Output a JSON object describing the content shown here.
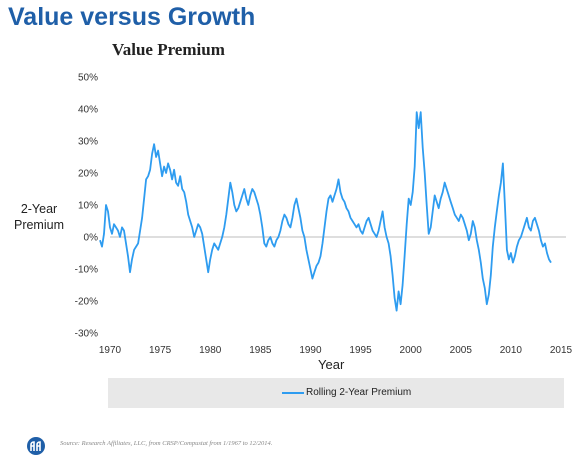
{
  "slide_title": "Value versus Growth",
  "source_note": "Source: Research Affiliates, LLC, from CRSP/Compustat from 1/1967 to 12/2014.",
  "logo_icon": "research-affiliates-logo",
  "chart_data": {
    "type": "line",
    "title": "Value Premium",
    "xlabel": "Year",
    "ylabel": "2-Year Premium",
    "ylabel_lines": [
      "2-Year",
      "Premium"
    ],
    "xlim": [
      1970,
      2015.5
    ],
    "ylim": [
      -30,
      50
    ],
    "x_ticks": [
      1970,
      1975,
      1980,
      1985,
      1990,
      1995,
      2000,
      2005,
      2010,
      2015
    ],
    "y_ticks": [
      -30,
      -20,
      -10,
      0,
      10,
      20,
      30,
      40,
      50
    ],
    "y_tick_labels": [
      "-30%",
      "-20%",
      "-10%",
      "0%",
      "10%",
      "20%",
      "30%",
      "40%",
      "50%"
    ],
    "zero_line": true,
    "grid": false,
    "legend_position": "bottom",
    "line_color": "#2e9cf0",
    "series": [
      {
        "name": "Rolling 2-Year Premium",
        "points": [
          [
            1969.0,
            -1
          ],
          [
            1969.2,
            -3
          ],
          [
            1969.4,
            1
          ],
          [
            1969.6,
            10
          ],
          [
            1969.8,
            8
          ],
          [
            1970.0,
            3
          ],
          [
            1970.2,
            1
          ],
          [
            1970.4,
            4
          ],
          [
            1970.6,
            3
          ],
          [
            1970.8,
            2
          ],
          [
            1971.0,
            0
          ],
          [
            1971.2,
            3
          ],
          [
            1971.4,
            2
          ],
          [
            1971.6,
            -2
          ],
          [
            1971.8,
            -6
          ],
          [
            1972.0,
            -11
          ],
          [
            1972.2,
            -7
          ],
          [
            1972.4,
            -4
          ],
          [
            1972.6,
            -3
          ],
          [
            1972.8,
            -2
          ],
          [
            1973.0,
            2
          ],
          [
            1973.2,
            6
          ],
          [
            1973.4,
            12
          ],
          [
            1973.6,
            18
          ],
          [
            1973.8,
            19
          ],
          [
            1974.0,
            21
          ],
          [
            1974.2,
            26
          ],
          [
            1974.4,
            29
          ],
          [
            1974.6,
            25
          ],
          [
            1974.8,
            27
          ],
          [
            1975.0,
            23
          ],
          [
            1975.2,
            19
          ],
          [
            1975.4,
            22
          ],
          [
            1975.6,
            20
          ],
          [
            1975.8,
            23
          ],
          [
            1976.0,
            21
          ],
          [
            1976.2,
            18
          ],
          [
            1976.4,
            21
          ],
          [
            1976.6,
            17
          ],
          [
            1976.8,
            16
          ],
          [
            1977.0,
            19
          ],
          [
            1977.2,
            15
          ],
          [
            1977.4,
            14
          ],
          [
            1977.6,
            11
          ],
          [
            1977.8,
            7
          ],
          [
            1978.0,
            5
          ],
          [
            1978.2,
            3
          ],
          [
            1978.4,
            0
          ],
          [
            1978.6,
            2
          ],
          [
            1978.8,
            4
          ],
          [
            1979.0,
            3
          ],
          [
            1979.2,
            1
          ],
          [
            1979.4,
            -3
          ],
          [
            1979.6,
            -7
          ],
          [
            1979.8,
            -11
          ],
          [
            1980.0,
            -7
          ],
          [
            1980.2,
            -4
          ],
          [
            1980.4,
            -2
          ],
          [
            1980.6,
            -3
          ],
          [
            1980.8,
            -4
          ],
          [
            1981.0,
            -2
          ],
          [
            1981.2,
            0
          ],
          [
            1981.4,
            3
          ],
          [
            1981.6,
            7
          ],
          [
            1981.8,
            12
          ],
          [
            1982.0,
            17
          ],
          [
            1982.2,
            14
          ],
          [
            1982.4,
            10
          ],
          [
            1982.6,
            8
          ],
          [
            1982.8,
            9
          ],
          [
            1983.0,
            11
          ],
          [
            1983.2,
            13
          ],
          [
            1983.4,
            15
          ],
          [
            1983.6,
            12
          ],
          [
            1983.8,
            10
          ],
          [
            1984.0,
            13
          ],
          [
            1984.2,
            15
          ],
          [
            1984.4,
            14
          ],
          [
            1984.6,
            12
          ],
          [
            1984.8,
            10
          ],
          [
            1985.0,
            7
          ],
          [
            1985.2,
            3
          ],
          [
            1985.4,
            -2
          ],
          [
            1985.6,
            -3
          ],
          [
            1985.8,
            -1
          ],
          [
            1986.0,
            0
          ],
          [
            1986.2,
            -2
          ],
          [
            1986.4,
            -3
          ],
          [
            1986.6,
            -1
          ],
          [
            1986.8,
            0
          ],
          [
            1987.0,
            2
          ],
          [
            1987.2,
            5
          ],
          [
            1987.4,
            7
          ],
          [
            1987.6,
            6
          ],
          [
            1987.8,
            4
          ],
          [
            1988.0,
            3
          ],
          [
            1988.2,
            6
          ],
          [
            1988.4,
            10
          ],
          [
            1988.6,
            12
          ],
          [
            1988.8,
            9
          ],
          [
            1989.0,
            6
          ],
          [
            1989.2,
            2
          ],
          [
            1989.4,
            0
          ],
          [
            1989.6,
            -4
          ],
          [
            1989.8,
            -7
          ],
          [
            1990.0,
            -10
          ],
          [
            1990.2,
            -13
          ],
          [
            1990.4,
            -11
          ],
          [
            1990.6,
            -9
          ],
          [
            1990.8,
            -8
          ],
          [
            1991.0,
            -6
          ],
          [
            1991.2,
            -2
          ],
          [
            1991.4,
            3
          ],
          [
            1991.6,
            8
          ],
          [
            1991.8,
            12
          ],
          [
            1992.0,
            13
          ],
          [
            1992.2,
            11
          ],
          [
            1992.4,
            13
          ],
          [
            1992.6,
            15
          ],
          [
            1992.8,
            18
          ],
          [
            1993.0,
            14
          ],
          [
            1993.2,
            12
          ],
          [
            1993.4,
            11
          ],
          [
            1993.6,
            9
          ],
          [
            1993.8,
            8
          ],
          [
            1994.0,
            6
          ],
          [
            1994.2,
            5
          ],
          [
            1994.4,
            4
          ],
          [
            1994.6,
            3
          ],
          [
            1994.8,
            4
          ],
          [
            1995.0,
            2
          ],
          [
            1995.2,
            1
          ],
          [
            1995.4,
            3
          ],
          [
            1995.6,
            5
          ],
          [
            1995.8,
            6
          ],
          [
            1996.0,
            4
          ],
          [
            1996.2,
            2
          ],
          [
            1996.4,
            1
          ],
          [
            1996.6,
            0
          ],
          [
            1996.8,
            2
          ],
          [
            1997.0,
            5
          ],
          [
            1997.2,
            8
          ],
          [
            1997.4,
            3
          ],
          [
            1997.6,
            0
          ],
          [
            1997.8,
            -2
          ],
          [
            1998.0,
            -6
          ],
          [
            1998.2,
            -12
          ],
          [
            1998.4,
            -19
          ],
          [
            1998.6,
            -23
          ],
          [
            1998.8,
            -17
          ],
          [
            1999.0,
            -21
          ],
          [
            1999.2,
            -15
          ],
          [
            1999.4,
            -6
          ],
          [
            1999.6,
            4
          ],
          [
            1999.8,
            12
          ],
          [
            2000.0,
            10
          ],
          [
            2000.2,
            14
          ],
          [
            2000.4,
            22
          ],
          [
            2000.6,
            39
          ],
          [
            2000.8,
            34
          ],
          [
            2001.0,
            39
          ],
          [
            2001.2,
            28
          ],
          [
            2001.4,
            20
          ],
          [
            2001.6,
            10
          ],
          [
            2001.8,
            1
          ],
          [
            2002.0,
            3
          ],
          [
            2002.2,
            8
          ],
          [
            2002.4,
            13
          ],
          [
            2002.6,
            11
          ],
          [
            2002.8,
            9
          ],
          [
            2003.0,
            12
          ],
          [
            2003.2,
            14
          ],
          [
            2003.4,
            17
          ],
          [
            2003.6,
            15
          ],
          [
            2003.8,
            13
          ],
          [
            2004.0,
            11
          ],
          [
            2004.2,
            9
          ],
          [
            2004.4,
            7
          ],
          [
            2004.6,
            6
          ],
          [
            2004.8,
            5
          ],
          [
            2005.0,
            7
          ],
          [
            2005.2,
            6
          ],
          [
            2005.4,
            4
          ],
          [
            2005.6,
            2
          ],
          [
            2005.8,
            -1
          ],
          [
            2006.0,
            1
          ],
          [
            2006.2,
            5
          ],
          [
            2006.4,
            3
          ],
          [
            2006.6,
            -1
          ],
          [
            2006.8,
            -4
          ],
          [
            2007.0,
            -8
          ],
          [
            2007.2,
            -13
          ],
          [
            2007.4,
            -16
          ],
          [
            2007.6,
            -21
          ],
          [
            2007.8,
            -18
          ],
          [
            2008.0,
            -12
          ],
          [
            2008.2,
            -3
          ],
          [
            2008.4,
            3
          ],
          [
            2008.6,
            8
          ],
          [
            2008.8,
            13
          ],
          [
            2009.0,
            17
          ],
          [
            2009.2,
            23
          ],
          [
            2009.4,
            10
          ],
          [
            2009.6,
            -4
          ],
          [
            2009.8,
            -7
          ],
          [
            2010.0,
            -5
          ],
          [
            2010.2,
            -8
          ],
          [
            2010.4,
            -6
          ],
          [
            2010.6,
            -3
          ],
          [
            2010.8,
            -1
          ],
          [
            2011.0,
            0
          ],
          [
            2011.2,
            2
          ],
          [
            2011.4,
            4
          ],
          [
            2011.6,
            6
          ],
          [
            2011.8,
            3
          ],
          [
            2012.0,
            2
          ],
          [
            2012.2,
            5
          ],
          [
            2012.4,
            6
          ],
          [
            2012.6,
            4
          ],
          [
            2012.8,
            2
          ],
          [
            2013.0,
            -1
          ],
          [
            2013.2,
            -3
          ],
          [
            2013.4,
            -2
          ],
          [
            2013.6,
            -5
          ],
          [
            2013.8,
            -7
          ],
          [
            2014.0,
            -8
          ]
        ]
      }
    ]
  }
}
